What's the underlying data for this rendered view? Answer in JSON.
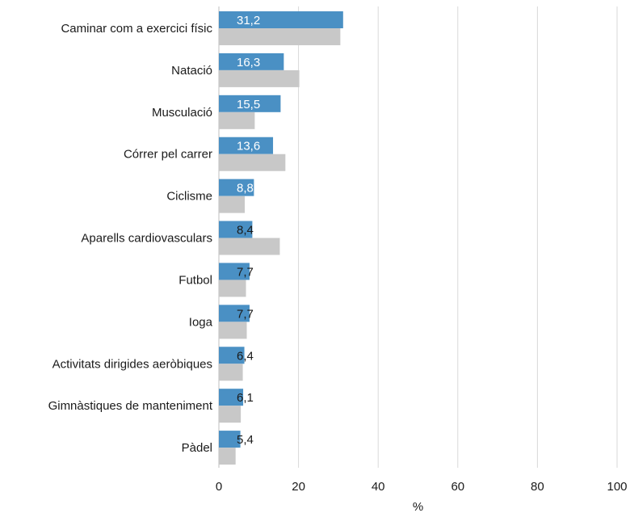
{
  "chart_data": {
    "type": "bar",
    "orientation": "horizontal",
    "categories": [
      "Caminar com a exercici físic",
      "Natació",
      "Musculació",
      "Córrer pel carrer",
      "Ciclisme",
      "Aparells cardiovasculars",
      "Futbol",
      "Ioga",
      "Activitats dirigides aeròbiques",
      "Gimnàstiques de manteniment",
      "Pàdel"
    ],
    "series": [
      {
        "color": "#4a90c4",
        "values": [
          31.2,
          16.3,
          15.5,
          13.6,
          8.8,
          8.4,
          7.7,
          7.7,
          6.4,
          6.1,
          5.4
        ],
        "labels": [
          "31,2",
          "16,3",
          "15,5",
          "13,6",
          "8,8",
          "8,4",
          "7,7",
          "7,7",
          "6,4",
          "6,1",
          "5,4"
        ]
      },
      {
        "color": "#c8c8c8",
        "values": [
          30.5,
          20.2,
          9.0,
          16.7,
          6.5,
          15.3,
          6.8,
          7.0,
          6.0,
          5.5,
          4.2
        ]
      }
    ],
    "xlabel": "%",
    "xlim": [
      0,
      100
    ],
    "xticks": [
      0,
      20,
      40,
      60,
      80,
      100
    ],
    "xtick_labels": [
      "0",
      "20",
      "40",
      "60",
      "80",
      "100"
    ],
    "grid": true,
    "legend": "none"
  }
}
